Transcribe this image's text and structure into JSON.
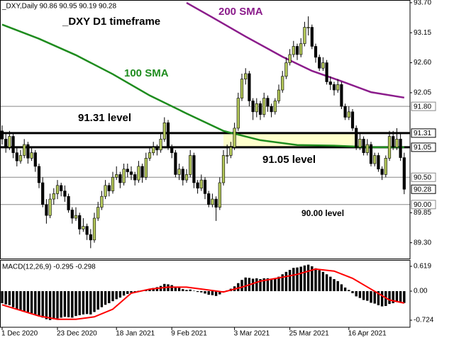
{
  "chart_data": [
    {
      "type": "candlestick",
      "title": "_DXY,Daily  90.86 90.95 90.19 90.28",
      "annotations": [
        "_DXY D1 timeframe",
        "91.31 level",
        "91.05 level",
        "90.00 level"
      ],
      "categories": [
        "1 Dec 2020",
        null,
        null,
        null,
        null,
        null,
        null,
        null,
        null,
        null,
        null,
        null,
        null,
        null,
        null,
        "23 Dec 2020",
        null,
        null,
        null,
        null,
        null,
        null,
        null,
        null,
        null,
        null,
        null,
        null,
        null,
        null,
        null,
        "18 Jan 2021",
        null,
        null,
        null,
        null,
        null,
        null,
        null,
        null,
        null,
        null,
        null,
        null,
        null,
        null,
        "9 Feb 2021",
        null,
        null,
        null,
        null,
        null,
        null,
        null,
        null,
        null,
        null,
        null,
        null,
        null,
        null,
        null,
        null,
        "3 Mar 2021",
        null,
        null,
        null,
        null,
        null,
        null,
        null,
        null,
        null,
        null,
        null,
        null,
        null,
        null,
        "25 Mar 2021",
        null,
        null,
        null,
        null,
        null,
        null,
        null,
        null,
        null,
        null,
        null,
        null,
        null,
        null,
        null,
        "16 Apr 2021",
        null,
        null,
        null,
        null,
        null,
        null,
        null,
        null,
        null,
        null,
        null,
        null,
        null,
        null,
        null
      ],
      "ohlc": [
        [
          91.35,
          91.45,
          91.1,
          91.2
        ],
        [
          91.2,
          91.3,
          90.95,
          91.05
        ],
        [
          91.05,
          91.35,
          91.0,
          91.25
        ],
        [
          91.25,
          91.3,
          90.85,
          90.95
        ],
        [
          90.95,
          91.05,
          90.7,
          90.8
        ],
        [
          90.8,
          91.0,
          90.75,
          90.9
        ],
        [
          90.9,
          91.2,
          90.85,
          91.1
        ],
        [
          91.1,
          91.15,
          90.75,
          90.85
        ],
        [
          90.85,
          91.05,
          90.8,
          90.95
        ],
        [
          90.95,
          91.0,
          90.6,
          90.7
        ],
        [
          90.7,
          90.75,
          90.3,
          90.4
        ],
        [
          90.4,
          90.5,
          89.95,
          90.0
        ],
        [
          90.0,
          90.1,
          89.65,
          89.8
        ],
        [
          89.8,
          90.2,
          89.75,
          90.1
        ],
        [
          90.1,
          90.3,
          90.0,
          90.2
        ],
        [
          90.2,
          90.45,
          90.1,
          90.35
        ],
        [
          90.35,
          90.4,
          90.15,
          90.25
        ],
        [
          90.25,
          90.35,
          90.05,
          90.15
        ],
        [
          90.15,
          90.2,
          89.85,
          89.9
        ],
        [
          89.9,
          89.95,
          89.65,
          89.75
        ],
        [
          89.75,
          89.95,
          89.7,
          89.8
        ],
        [
          89.8,
          89.85,
          89.45,
          89.55
        ],
        [
          89.55,
          89.75,
          89.5,
          89.6
        ],
        [
          89.6,
          89.65,
          89.35,
          89.45
        ],
        [
          89.45,
          89.55,
          89.2,
          89.35
        ],
        [
          89.35,
          89.85,
          89.3,
          89.75
        ],
        [
          89.75,
          90.05,
          89.7,
          89.95
        ],
        [
          89.95,
          90.25,
          89.9,
          90.15
        ],
        [
          90.15,
          90.45,
          90.1,
          90.35
        ],
        [
          90.35,
          90.4,
          90.15,
          90.25
        ],
        [
          90.25,
          90.6,
          90.2,
          90.5
        ],
        [
          90.5,
          90.7,
          90.45,
          90.55
        ],
        [
          90.55,
          90.6,
          90.3,
          90.4
        ],
        [
          90.4,
          90.75,
          90.35,
          90.65
        ],
        [
          90.65,
          90.75,
          90.5,
          90.6
        ],
        [
          90.6,
          90.7,
          90.45,
          90.55
        ],
        [
          90.55,
          90.6,
          90.35,
          90.45
        ],
        [
          90.45,
          90.8,
          90.4,
          90.7
        ],
        [
          90.7,
          90.75,
          90.4,
          90.5
        ],
        [
          90.5,
          90.95,
          90.45,
          90.85
        ],
        [
          90.85,
          91.05,
          90.8,
          90.95
        ],
        [
          90.95,
          91.15,
          90.9,
          91.05
        ],
        [
          91.05,
          91.1,
          90.9,
          91.0
        ],
        [
          91.0,
          91.3,
          90.95,
          91.2
        ],
        [
          91.2,
          91.6,
          91.15,
          91.5
        ],
        [
          91.5,
          91.55,
          91.0,
          91.05
        ],
        [
          91.05,
          91.1,
          90.85,
          90.95
        ],
        [
          90.95,
          91.0,
          90.5,
          90.55
        ],
        [
          90.55,
          90.75,
          90.45,
          90.65
        ],
        [
          90.65,
          90.7,
          90.35,
          90.45
        ],
        [
          90.45,
          90.65,
          90.4,
          90.55
        ],
        [
          90.55,
          91.0,
          90.5,
          90.9
        ],
        [
          90.9,
          90.95,
          90.3,
          90.4
        ],
        [
          90.4,
          90.45,
          90.2,
          90.3
        ],
        [
          90.3,
          90.55,
          90.25,
          90.45
        ],
        [
          90.45,
          90.5,
          90.1,
          90.2
        ],
        [
          90.2,
          90.25,
          89.95,
          90.0
        ],
        [
          90.0,
          90.2,
          89.95,
          90.1
        ],
        [
          90.1,
          90.15,
          89.7,
          89.95
        ],
        [
          89.95,
          90.5,
          89.9,
          90.4
        ],
        [
          90.4,
          91.0,
          90.35,
          90.9
        ],
        [
          90.9,
          91.1,
          90.75,
          90.9
        ],
        [
          90.9,
          91.15,
          90.85,
          91.05
        ],
        [
          91.05,
          91.5,
          91.0,
          91.4
        ],
        [
          91.4,
          92.05,
          91.35,
          91.95
        ],
        [
          91.95,
          92.4,
          91.9,
          92.3
        ],
        [
          92.3,
          92.5,
          92.2,
          92.4
        ],
        [
          92.4,
          92.45,
          91.8,
          91.9
        ],
        [
          91.9,
          91.95,
          91.55,
          91.7
        ],
        [
          91.7,
          91.95,
          91.6,
          91.85
        ],
        [
          91.85,
          91.9,
          91.55,
          91.65
        ],
        [
          91.65,
          92.05,
          91.6,
          91.95
        ],
        [
          91.95,
          92.0,
          91.7,
          91.8
        ],
        [
          91.8,
          91.85,
          91.6,
          91.7
        ],
        [
          91.7,
          91.95,
          91.65,
          91.9
        ],
        [
          91.9,
          92.2,
          91.85,
          92.1
        ],
        [
          92.1,
          92.45,
          92.05,
          92.35
        ],
        [
          92.35,
          92.7,
          92.3,
          92.6
        ],
        [
          92.6,
          92.85,
          92.55,
          92.75
        ],
        [
          92.75,
          93.0,
          92.7,
          92.9
        ],
        [
          92.9,
          92.95,
          92.65,
          92.75
        ],
        [
          92.75,
          93.05,
          92.7,
          92.95
        ],
        [
          92.95,
          93.35,
          92.9,
          93.25
        ],
        [
          93.25,
          93.45,
          93.1,
          93.25
        ],
        [
          93.25,
          93.3,
          92.85,
          92.9
        ],
        [
          92.9,
          92.95,
          92.6,
          92.7
        ],
        [
          92.7,
          92.75,
          92.45,
          92.5
        ],
        [
          92.5,
          92.7,
          92.45,
          92.6
        ],
        [
          92.6,
          92.65,
          92.2,
          92.25
        ],
        [
          92.25,
          92.35,
          92.1,
          92.2
        ],
        [
          92.2,
          92.25,
          92.0,
          92.1
        ],
        [
          92.1,
          92.3,
          92.05,
          92.2
        ],
        [
          92.2,
          92.25,
          91.75,
          91.8
        ],
        [
          91.8,
          91.85,
          91.55,
          91.6
        ],
        [
          91.6,
          91.8,
          91.55,
          91.7
        ],
        [
          91.7,
          91.75,
          91.35,
          91.4
        ],
        [
          91.4,
          91.45,
          91.0,
          91.05
        ],
        [
          91.05,
          91.3,
          91.0,
          91.2
        ],
        [
          91.2,
          91.25,
          90.9,
          90.95
        ],
        [
          90.95,
          91.2,
          90.9,
          91.1
        ],
        [
          91.1,
          91.15,
          90.7,
          90.75
        ],
        [
          90.75,
          90.95,
          90.7,
          90.9
        ],
        [
          90.9,
          90.95,
          90.6,
          90.65
        ],
        [
          90.65,
          90.7,
          90.45,
          90.55
        ],
        [
          90.55,
          90.9,
          90.5,
          90.85
        ],
        [
          90.85,
          91.35,
          90.8,
          91.25
        ],
        [
          91.25,
          91.35,
          91.0,
          91.05
        ],
        [
          91.05,
          91.4,
          91.0,
          91.2
        ],
        [
          91.2,
          91.3,
          90.8,
          90.86
        ],
        [
          90.86,
          90.95,
          90.19,
          90.28
        ]
      ],
      "up_color": "#b4c85a",
      "down_color": "#000000",
      "series": [
        {
          "name": "100 SMA",
          "color": "#1e8c1e",
          "x": [
            0,
            10,
            20,
            30,
            40,
            50,
            60,
            70,
            80,
            90,
            100,
            109
          ],
          "values": [
            93.3,
            93.04,
            92.74,
            92.39,
            92.0,
            91.67,
            91.35,
            91.18,
            91.09,
            91.08,
            91.05,
            91.05
          ]
        },
        {
          "name": "200 SMA",
          "color": "#8b1c8b",
          "x": [
            50,
            57,
            66,
            76,
            84,
            92,
            100,
            109
          ],
          "values": [
            93.7,
            93.43,
            93.08,
            92.71,
            92.45,
            92.26,
            92.06,
            91.96
          ]
        }
      ],
      "ylim": [
        89.01,
        93.75
      ],
      "yticks": [
        {
          "value": 93.7,
          "label": "93.70"
        },
        {
          "value": 93.15,
          "label": "93.15"
        },
        {
          "value": 92.6,
          "label": "92.60"
        },
        {
          "value": 92.05,
          "label": "92.05"
        },
        {
          "value": 89.85,
          "label": "89.85"
        },
        {
          "value": 89.3,
          "label": "89.30"
        }
      ],
      "hlines": [
        {
          "value": 91.8,
          "label": "91.80",
          "bold": false
        },
        {
          "value": 91.31,
          "label": "91.31",
          "bold": true
        },
        {
          "value": 91.05,
          "label": "91.05",
          "bold": true
        },
        {
          "value": 90.5,
          "label": "90.50",
          "bold": false
        },
        {
          "value": 90,
          "label": "90.00",
          "bold": false
        }
      ],
      "last": {
        "value": 90.28,
        "label": "90.28"
      }
    },
    {
      "type": "macd",
      "title": "MACD(12,26,9) -0.295 -0.298",
      "histogram": {
        "color": "#000000",
        "values": [
          -0.3,
          -0.33,
          -0.35,
          -0.4,
          -0.45,
          -0.48,
          -0.5,
          -0.52,
          -0.55,
          -0.58,
          -0.62,
          -0.66,
          -0.7,
          -0.72,
          -0.7,
          -0.68,
          -0.66,
          -0.64,
          -0.65,
          -0.66,
          -0.62,
          -0.6,
          -0.58,
          -0.57,
          -0.58,
          -0.52,
          -0.46,
          -0.4,
          -0.34,
          -0.3,
          -0.25,
          -0.2,
          -0.16,
          -0.11,
          -0.07,
          -0.04,
          -0.02,
          0.01,
          0.02,
          0.04,
          0.06,
          0.08,
          0.1,
          0.13,
          0.18,
          0.17,
          0.15,
          0.1,
          0.08,
          0.05,
          0.03,
          0.04,
          0.01,
          -0.02,
          -0.03,
          -0.06,
          -0.09,
          -0.1,
          -0.12,
          -0.08,
          -0.02,
          0.02,
          0.06,
          0.12,
          0.2,
          0.28,
          0.34,
          0.33,
          0.31,
          0.32,
          0.3,
          0.32,
          0.32,
          0.31,
          0.32,
          0.36,
          0.42,
          0.48,
          0.53,
          0.58,
          0.59,
          0.61,
          0.64,
          0.66,
          0.62,
          0.57,
          0.52,
          0.48,
          0.42,
          0.36,
          0.3,
          0.25,
          0.17,
          0.09,
          0.03,
          -0.05,
          -0.13,
          -0.17,
          -0.22,
          -0.24,
          -0.29,
          -0.31,
          -0.35,
          -0.38,
          -0.37,
          -0.32,
          -0.3,
          -0.27,
          -0.27,
          -0.295
        ]
      },
      "signal": {
        "color": "#ff0000",
        "x": [
          0,
          5,
          10,
          15,
          20,
          25,
          30,
          35,
          40,
          45,
          50,
          55,
          60,
          65,
          70,
          75,
          80,
          85,
          90,
          95,
          100,
          105,
          109
        ],
        "values": [
          -0.34,
          -0.48,
          -0.62,
          -0.7,
          -0.7,
          -0.64,
          -0.45,
          -0.05,
          0.05,
          0.1,
          0.1,
          0.04,
          -0.02,
          0.1,
          0.25,
          0.33,
          0.42,
          0.55,
          0.5,
          0.32,
          0.05,
          -0.22,
          -0.298
        ]
      },
      "ylim": [
        -0.9,
        0.76
      ],
      "yticks": [
        0.619,
        {
          "value": 0,
          "label": "0.00"
        },
        -0.724
      ]
    }
  ]
}
